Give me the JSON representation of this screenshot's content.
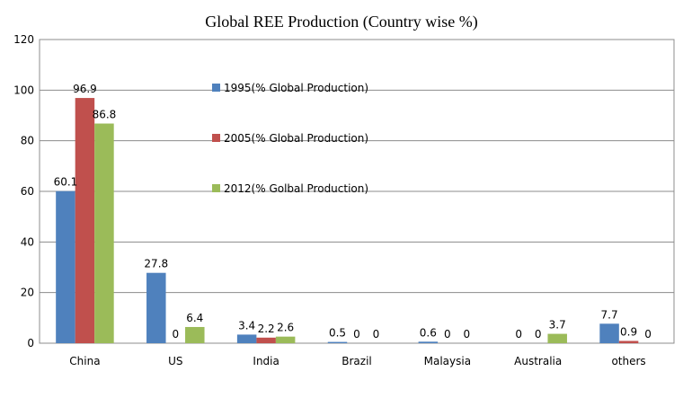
{
  "chart_data": {
    "type": "bar",
    "title": "Global REE Production (Country wise %)",
    "xlabel": "",
    "ylabel": "",
    "ylim": [
      0,
      120
    ],
    "yticks": [
      0,
      20,
      40,
      60,
      80,
      100,
      120
    ],
    "grid": true,
    "legend_position": "inside-top-center",
    "categories": [
      "China",
      "US",
      "India",
      "Brazil",
      "Malaysia",
      "Australia",
      "others"
    ],
    "series": [
      {
        "name": "1995(% Global Production)",
        "color": "#4F81BD",
        "values": [
          60.1,
          27.8,
          3.4,
          0.5,
          0.6,
          0,
          7.7
        ]
      },
      {
        "name": "2005(% Global Production)",
        "color": "#C0504D",
        "values": [
          96.9,
          0,
          2.2,
          0,
          0,
          0,
          0.9
        ]
      },
      {
        "name": "2012(% Golbal Production)",
        "color": "#9BBB59",
        "values": [
          86.8,
          6.4,
          2.6,
          0,
          0,
          3.7,
          0
        ]
      }
    ]
  }
}
